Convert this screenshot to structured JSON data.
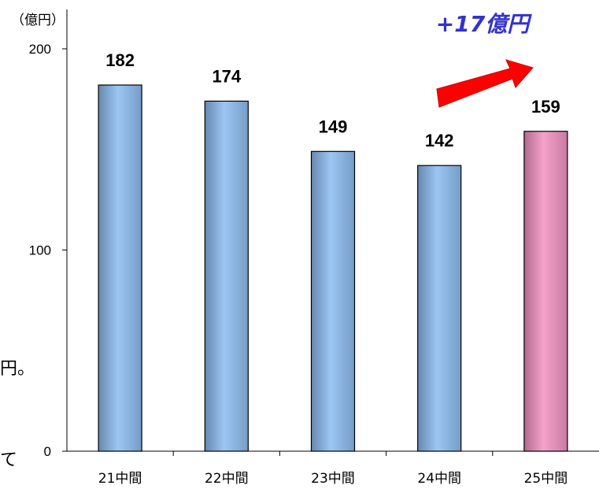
{
  "side_text": [
    "円。",
    "て"
  ],
  "chart_data": {
    "type": "bar",
    "unit_label": "（億円）",
    "categories": [
      "21中間",
      "22中間",
      "23中間",
      "24中間",
      "25中間"
    ],
    "values": [
      182,
      174,
      149,
      142,
      159
    ],
    "data_labels": [
      "182",
      "174",
      "149",
      "142",
      "159"
    ],
    "ylim": [
      0,
      200
    ],
    "yticks": [
      0,
      100,
      200
    ],
    "ytick_labels": [
      "0",
      "100",
      "200"
    ],
    "grid": false,
    "legend": "none",
    "bar_colors": [
      "#8fbef2",
      "#8fbef2",
      "#8fbef2",
      "#8fbef2",
      "#f595c4"
    ],
    "arrow_color": "#ff0000",
    "annotation": {
      "text": "+17億円",
      "color": "#3333cc"
    }
  }
}
